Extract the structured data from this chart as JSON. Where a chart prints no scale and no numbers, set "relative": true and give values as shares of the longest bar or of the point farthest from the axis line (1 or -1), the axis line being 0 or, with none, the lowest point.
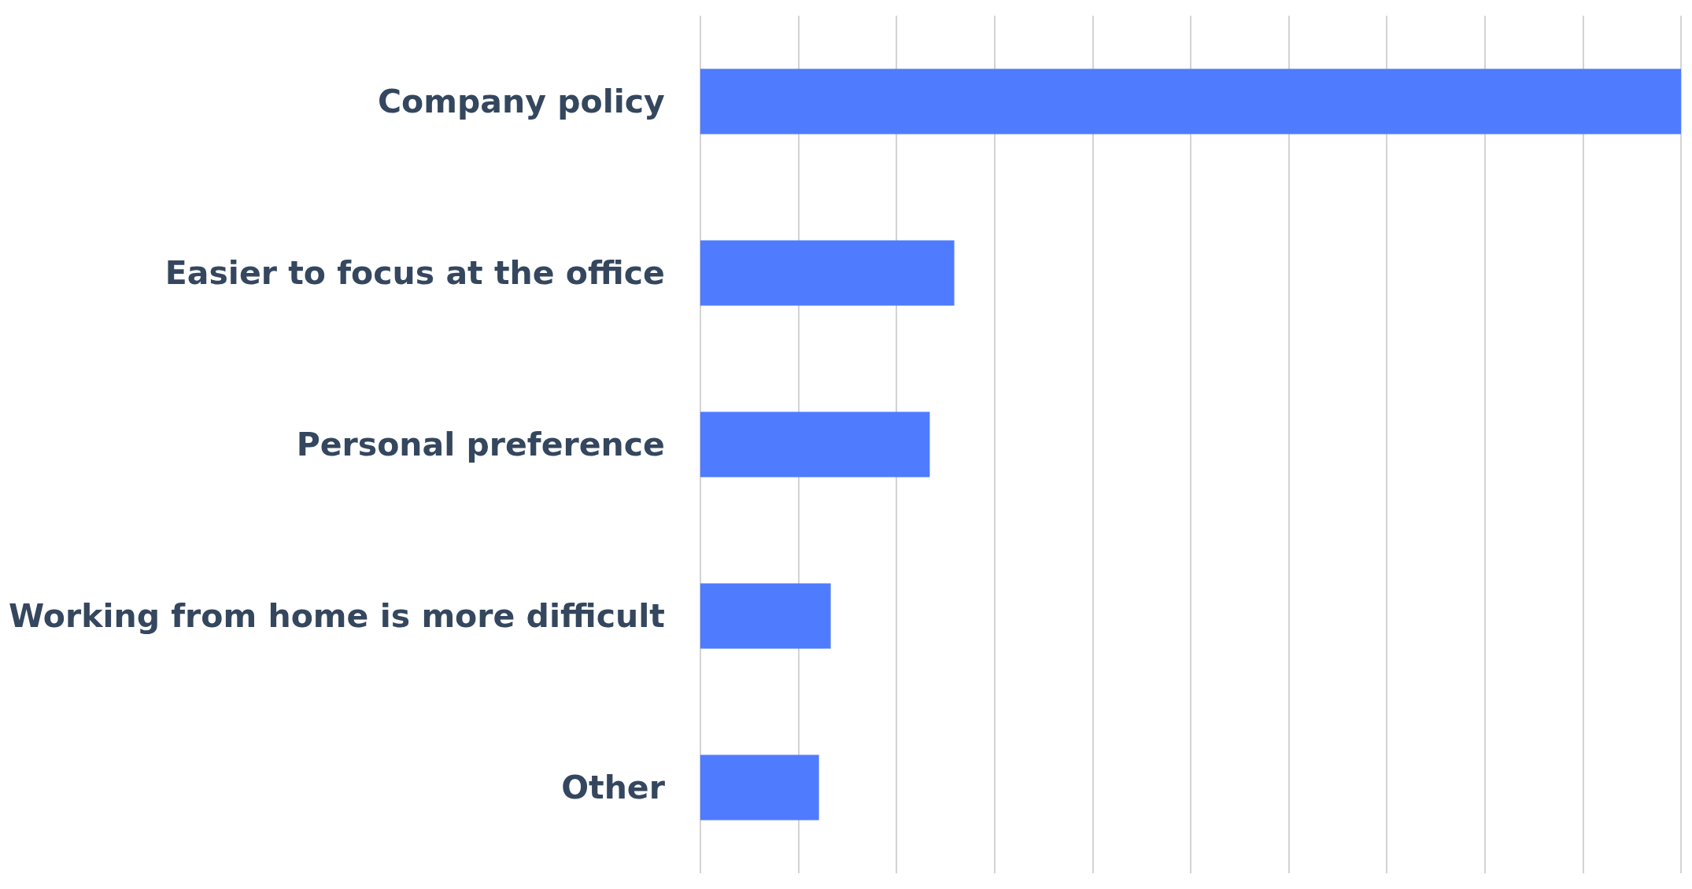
{
  "chart_data": {
    "type": "bar",
    "orientation": "horizontal",
    "relative": true,
    "categories": [
      "Company policy",
      "Easier to focus at the office",
      "Personal preference",
      "Working from home is more difficult",
      "Other"
    ],
    "values": [
      1,
      0.259,
      0.234,
      0.133,
      0.121
    ],
    "color": "#4f7bff",
    "grid": "x"
  }
}
